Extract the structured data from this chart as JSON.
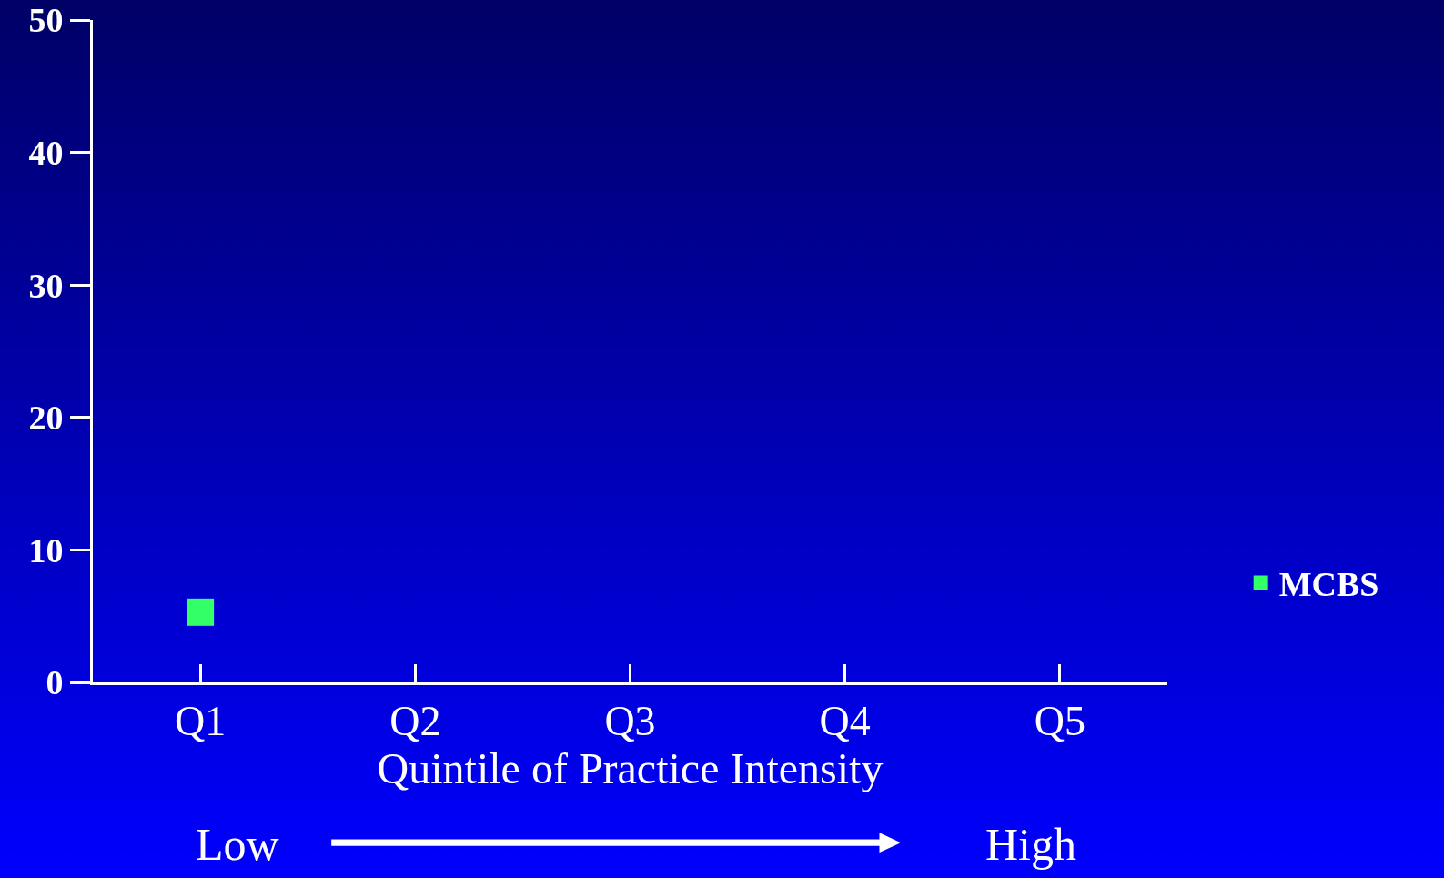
{
  "chart_data": {
    "type": "scatter",
    "categories": [
      "Q1",
      "Q2",
      "Q3",
      "Q4",
      "Q5"
    ],
    "series": [
      {
        "name": "MCBS",
        "color": "#33ff66",
        "values": [
          5.3,
          null,
          null,
          null,
          null
        ]
      }
    ],
    "ylim": [
      0,
      50
    ],
    "yticks": [
      0,
      10,
      20,
      30,
      40,
      50
    ],
    "xlabel": "Quintile of Practice Intensity",
    "annotations": [
      "Low",
      "High"
    ],
    "marker": "square",
    "legend": "right",
    "grid": false
  }
}
